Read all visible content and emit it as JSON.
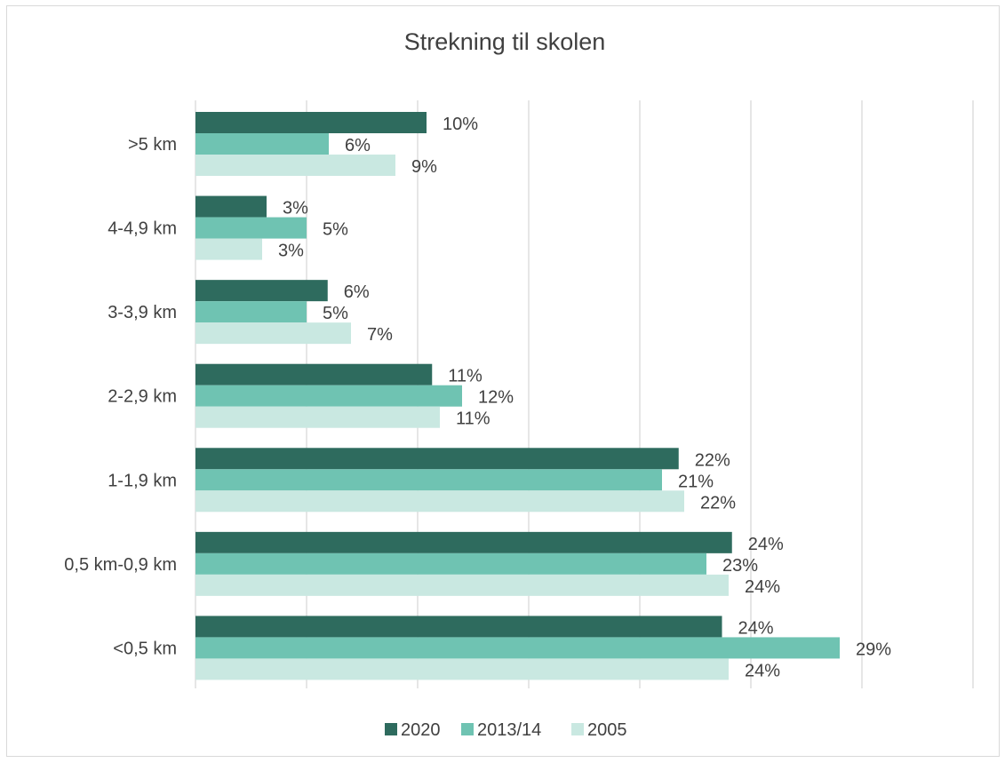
{
  "chart_data": {
    "type": "bar",
    "orientation": "horizontal",
    "title": "Strekning til skolen",
    "categories": [
      ">5 km",
      "4-4,9 km",
      "3-3,9 km",
      "2-2,9 km",
      "1-1,9 km",
      "0,5 km-0,9 km",
      "<0,5 km"
    ],
    "series": [
      {
        "name": "2020",
        "color": "#2e6b5e",
        "values": [
          10.4,
          3.2,
          5.95,
          10.65,
          21.75,
          24.15,
          23.7
        ],
        "labels": [
          "10%",
          "3%",
          "6%",
          "11%",
          "22%",
          "24%",
          "24%"
        ]
      },
      {
        "name": "2013/14",
        "color": "#6fc3b2",
        "values": [
          6.0,
          5.0,
          5.0,
          12.0,
          21.0,
          23.0,
          29.0
        ],
        "labels": [
          "6%",
          "5%",
          "5%",
          "12%",
          "21%",
          "23%",
          "29%"
        ]
      },
      {
        "name": "2005",
        "color": "#c9e8e1",
        "values": [
          9.0,
          3.0,
          7.0,
          11.0,
          22.0,
          24.0,
          24.0
        ],
        "labels": [
          "9%",
          "3%",
          "7%",
          "11%",
          "22%",
          "24%",
          "24%"
        ]
      }
    ],
    "xlim": [
      0,
      35
    ],
    "gridlines": "vertical",
    "legend": "bottom",
    "value_format": "percent"
  }
}
